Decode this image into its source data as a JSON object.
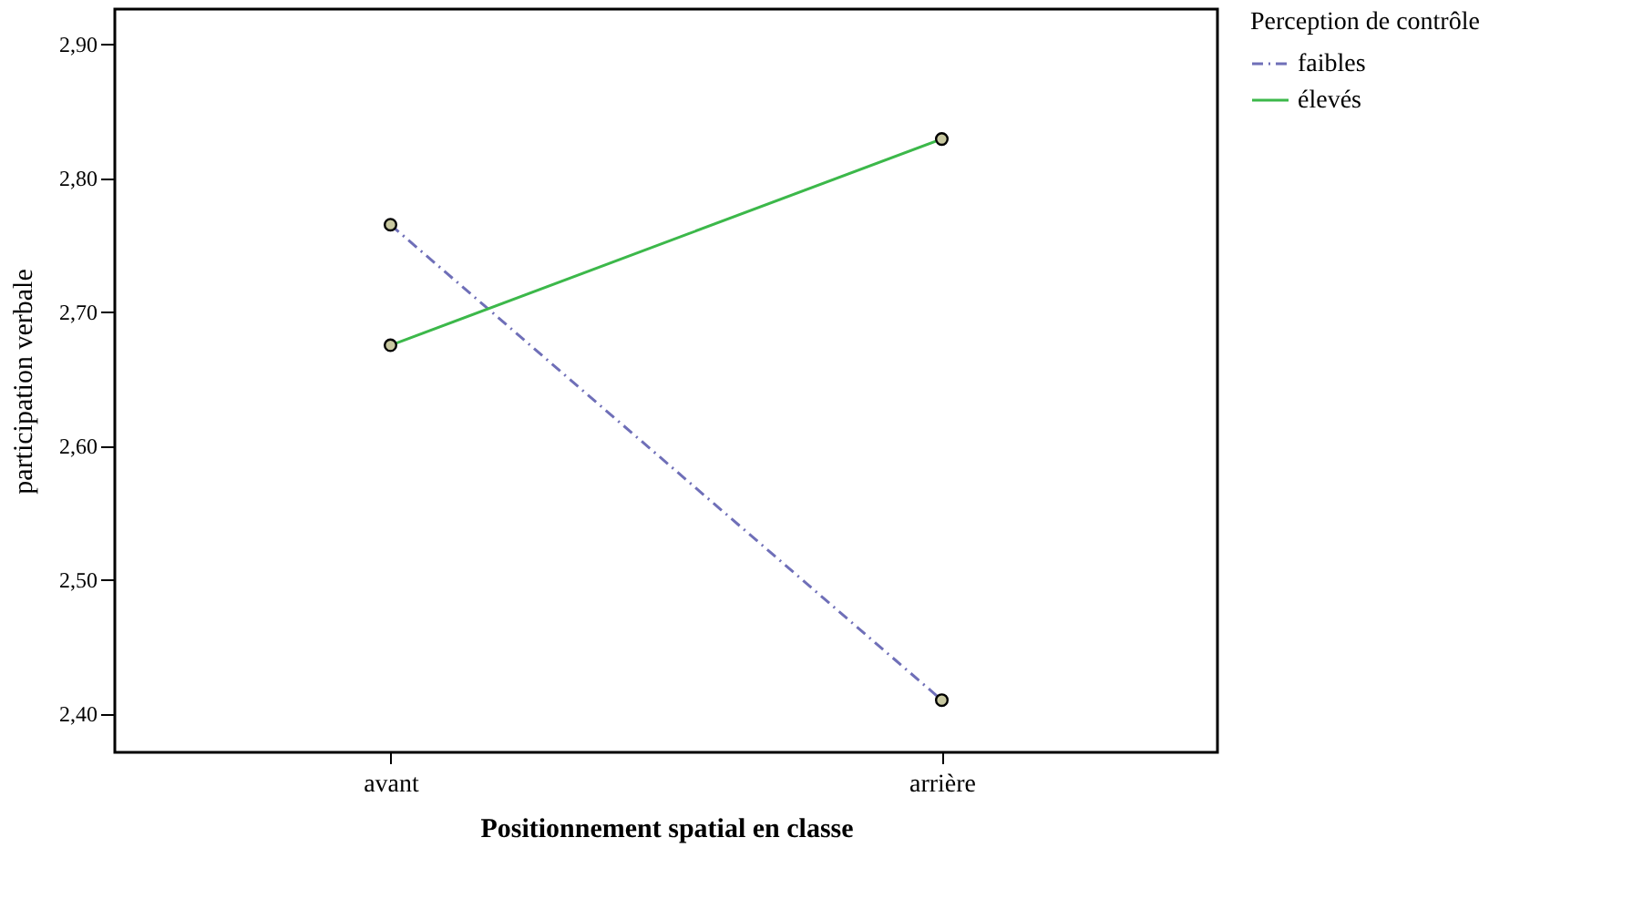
{
  "chart_data": {
    "type": "line",
    "xlabel": "Positionnement spatial en classe",
    "ylabel": "participation verbale",
    "legend_title": "Perception de contrôle",
    "categories": [
      "avant",
      "arrière"
    ],
    "series": [
      {
        "name": "faibles",
        "color": "#6f6fb8",
        "line_style": "dashed",
        "values": [
          2.765,
          2.41
        ]
      },
      {
        "name": "élevés",
        "color": "#3cb84a",
        "line_style": "solid",
        "values": [
          2.675,
          2.829
        ]
      }
    ],
    "ylim": [
      2.371,
      2.926
    ],
    "yticks": [
      {
        "value": 2.4,
        "label": "2,40"
      },
      {
        "value": 2.5,
        "label": "2,50"
      },
      {
        "value": 2.6,
        "label": "2,60"
      },
      {
        "value": 2.7,
        "label": "2,70"
      },
      {
        "value": 2.8,
        "label": "2,80"
      },
      {
        "value": 2.9,
        "label": "2,90"
      }
    ],
    "marker": "circle",
    "grid": false,
    "legend": "top right"
  }
}
